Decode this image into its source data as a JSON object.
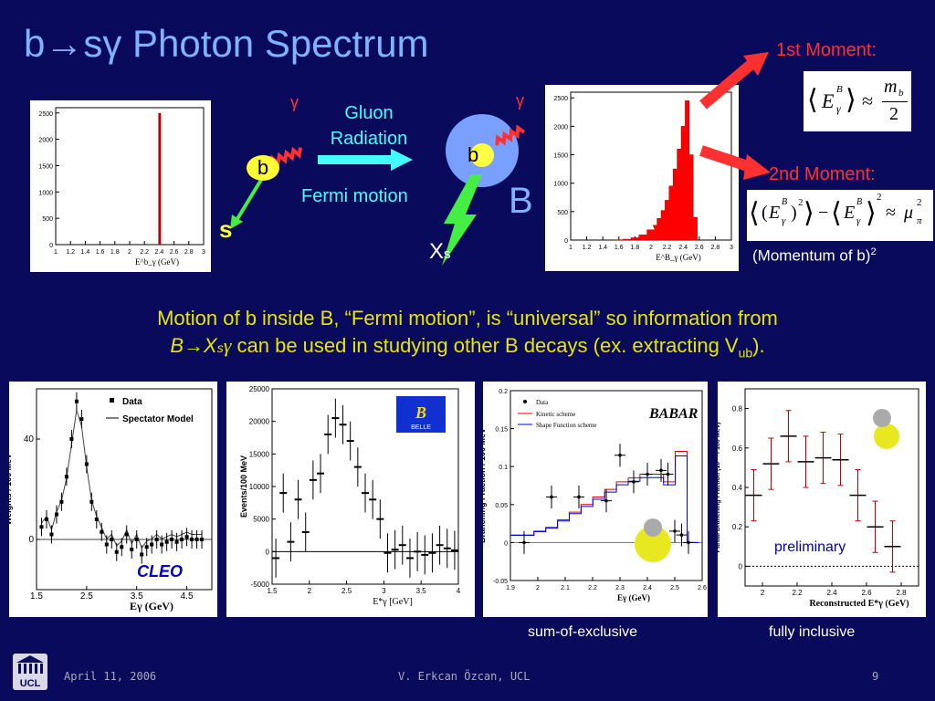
{
  "title": {
    "b": "b",
    "arrow": "→",
    "s": "s",
    "gamma": "γ",
    "rest": " Photon Spectrum"
  },
  "diagram": {
    "b_left": "b",
    "s_label": "s",
    "gamma_left": "γ",
    "gluon_radiation": [
      "Gluon",
      "Radiation"
    ],
    "fermi_motion": "Fermi motion",
    "b_in_B": "b",
    "gamma_right": "γ",
    "B_label": "B",
    "Xs_label": {
      "X": "X",
      "sub": "s"
    }
  },
  "moments": {
    "first_label": "1st Moment:",
    "second_label": "2nd Moment:",
    "momentum_note": {
      "text": "(Momentum of b)",
      "sup": "2"
    },
    "first_eq": {
      "E": "E",
      "sup": "B",
      "sub": "γ",
      "approx": "≈",
      "num": "m",
      "num_sub": "b",
      "den": "2"
    },
    "second_eq": {
      "E": "E",
      "sup": "B",
      "sub": "γ",
      "sq": "2",
      "minus": "−",
      "approx": "≈",
      "mu": "μ",
      "mu_sub": "π",
      "mu_sup": "2"
    }
  },
  "motion_text": {
    "line1": "Motion of b inside B, “Fermi motion”, is “universal” so information from",
    "line2_a": "B→X",
    "line2_s": "s",
    "line2_g": "γ",
    "line2_b": " can be used in studying other B decays (ex. extracting V",
    "line2_sub": "ub",
    "line2_end": ")."
  },
  "captions": {
    "sum_exclusive": "sum-of-exclusive",
    "fully_inclusive": "fully inclusive"
  },
  "footer": {
    "date": "April 11, 2006",
    "author": "V. Erkcan Özcan, UCL",
    "page": "9",
    "logo": "UCL"
  },
  "chart_data": [
    {
      "type": "bar",
      "xlabel": "E^b_γ (GeV)",
      "xlim": [
        1,
        3
      ],
      "ylim": [
        0,
        2600
      ],
      "xticks": [
        "1",
        "1.2",
        "1.4",
        "1.6",
        "1.8",
        "2",
        "2.2",
        "2.4",
        "2.6",
        "2.8",
        "3"
      ],
      "yticks": [
        "0",
        "500",
        "1000",
        "1500",
        "2000",
        "2500"
      ],
      "x": [
        2.4
      ],
      "values": [
        2500
      ],
      "color": "#c00000"
    },
    {
      "type": "bar",
      "xlabel": "E^B_γ (GeV)",
      "xlim": [
        1,
        3
      ],
      "ylim": [
        0,
        2600
      ],
      "xticks": [
        "1",
        "1.2",
        "1.4",
        "1.6",
        "1.8",
        "2",
        "2.2",
        "2.4",
        "2.6",
        "2.8",
        "3"
      ],
      "yticks": [
        "0",
        "500",
        "1000",
        "1500",
        "2000",
        "2500"
      ],
      "x": [
        1.6,
        1.7,
        1.8,
        1.9,
        2.0,
        2.05,
        2.1,
        2.15,
        2.2,
        2.25,
        2.3,
        2.35,
        2.4,
        2.45,
        2.5,
        2.55
      ],
      "values": [
        5,
        15,
        40,
        90,
        180,
        260,
        380,
        520,
        700,
        950,
        1250,
        1600,
        2000,
        2450,
        1500,
        400
      ],
      "color": "#ff0000"
    },
    {
      "type": "scatter",
      "title": "CLEO",
      "xlabel": "Eγ (GeV)",
      "ylabel": "Weights / 100 MeV",
      "xlim": [
        1.5,
        5
      ],
      "ylim": [
        -20,
        60
      ],
      "xticks": [
        "1.5",
        "2.5",
        "3.5",
        "4.5"
      ],
      "yticks": [
        "0",
        "40"
      ],
      "legend": [
        "Data",
        "Spectator Model"
      ],
      "x": [
        1.6,
        1.7,
        1.8,
        1.9,
        2.0,
        2.1,
        2.2,
        2.3,
        2.4,
        2.5,
        2.6,
        2.7,
        2.8,
        2.9,
        3.0,
        3.1,
        3.2,
        3.3,
        3.4,
        3.5,
        3.6,
        3.7,
        3.8,
        3.9,
        4.0,
        4.1,
        4.2,
        4.3,
        4.4,
        4.5,
        4.6,
        4.7,
        4.8
      ],
      "y": [
        5,
        8,
        2,
        10,
        15,
        25,
        40,
        55,
        48,
        30,
        15,
        8,
        3,
        -2,
        0,
        -5,
        -3,
        2,
        -4,
        0,
        -6,
        -3,
        -2,
        0,
        -2,
        -1,
        0,
        -1,
        0,
        1,
        0,
        0,
        0
      ]
    },
    {
      "type": "scatter",
      "title": "BELLE",
      "xlabel": "E*γ [GeV]",
      "ylabel": "Events/100 MeV",
      "xlim": [
        1.5,
        4
      ],
      "ylim": [
        -5000,
        25000
      ],
      "xticks": [
        "1.5",
        "2",
        "2.5",
        "3",
        "3.5",
        "4"
      ],
      "yticks": [
        "-5000",
        "0",
        "5000",
        "10000",
        "15000",
        "20000",
        "25000"
      ],
      "x": [
        1.55,
        1.65,
        1.75,
        1.85,
        1.95,
        2.05,
        2.15,
        2.25,
        2.35,
        2.45,
        2.55,
        2.65,
        2.75,
        2.85,
        2.95,
        3.05,
        3.15,
        3.25,
        3.35,
        3.45,
        3.55,
        3.65,
        3.75,
        3.85,
        3.95
      ],
      "y": [
        -1000,
        9000,
        1500,
        8000,
        3000,
        11000,
        12000,
        18000,
        20500,
        19500,
        17000,
        13000,
        9000,
        8000,
        5000,
        -200,
        300,
        1000,
        -1000,
        0,
        -500,
        -200,
        1000,
        500,
        200
      ]
    },
    {
      "type": "line",
      "title": "BABAR",
      "xlabel": "Eγ (GeV)",
      "ylabel": "Branching Fraction / 100 MeV",
      "xlim": [
        1.9,
        2.6
      ],
      "ylim": [
        -0.05,
        0.2
      ],
      "xticks": [
        "1.9",
        "2",
        "2.1",
        "2.2",
        "2.3",
        "2.4",
        "2.5",
        "2.6"
      ],
      "yticks": [
        "-0.05",
        "0",
        "0.05",
        "0.1",
        "0.15",
        "0.2"
      ],
      "legend": [
        "Data",
        "Kinetic scheme",
        "Shape Function scheme"
      ],
      "data_points": {
        "x": [
          1.95,
          2.05,
          2.15,
          2.25,
          2.3,
          2.35,
          2.4,
          2.45,
          2.475,
          2.5,
          2.525,
          2.55
        ],
        "y": [
          0.0,
          0.06,
          0.06,
          0.055,
          0.115,
          0.08,
          0.09,
          0.095,
          0.09,
          0.015,
          0.01,
          0.0
        ]
      }
    },
    {
      "type": "scatter",
      "title": "preliminary",
      "xlabel": "Reconstructed E*γ (GeV)",
      "ylabel": "Partial Branching Fraction (10⁻⁴ / 100 MeV)",
      "xlim": [
        1.9,
        2.9
      ],
      "ylim": [
        -0.1,
        0.9
      ],
      "xticks": [
        "2",
        "2.2",
        "2.4",
        "2.6",
        "2.8"
      ],
      "yticks": [
        "0",
        "0.2",
        "0.4",
        "0.6",
        "0.8"
      ],
      "x": [
        1.95,
        2.05,
        2.15,
        2.25,
        2.35,
        2.45,
        2.55,
        2.65,
        2.75
      ],
      "y": [
        0.36,
        0.52,
        0.66,
        0.53,
        0.55,
        0.54,
        0.36,
        0.2,
        0.1
      ]
    }
  ]
}
